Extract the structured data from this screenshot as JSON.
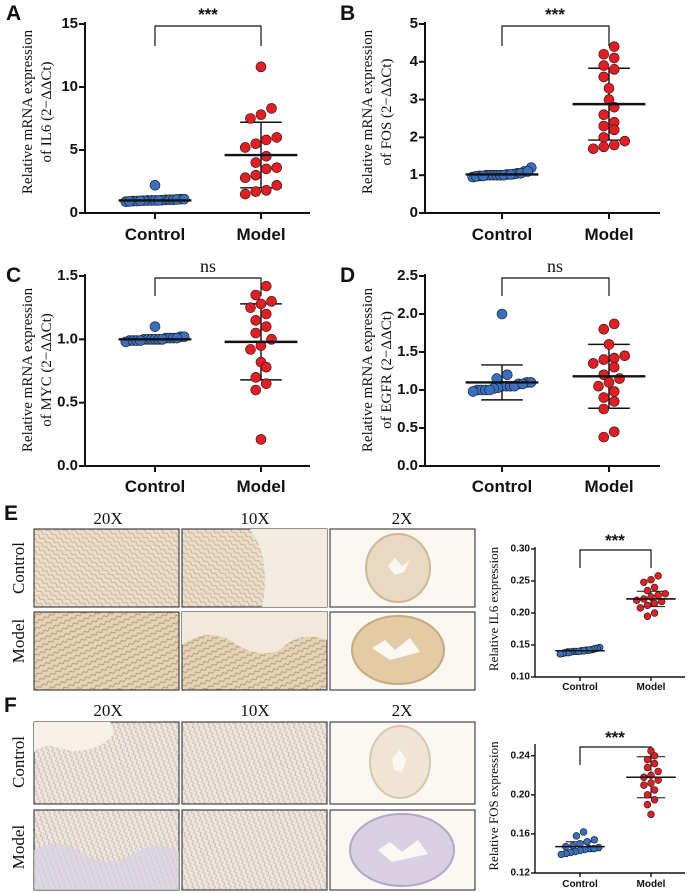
{
  "colors": {
    "control": "#3a6fbf",
    "model": "#e51d23",
    "axis": "#111111",
    "tissue_light": "#efe3cf",
    "tissue_dark": "#d9c4a6",
    "stain_blue": "#b9b3cf",
    "stain_brown": "#c9ad86"
  },
  "chart_data": [
    {
      "id": "A",
      "panel_label": "A",
      "type": "scatter",
      "ylabel_line1": "Relative mRNA expression",
      "ylabel_line2": "of IL6 (2−ΔΔCt)",
      "ylim": [
        0,
        15
      ],
      "yticks": [
        "0",
        "5",
        "10",
        "15"
      ],
      "ytick_values": [
        0,
        5,
        10,
        15
      ],
      "categories": [
        "Control",
        "Model"
      ],
      "significance": "***",
      "series": [
        {
          "name": "Control",
          "mean": 1.0,
          "sd": 0.25,
          "values": [
            0.95,
            1.0,
            1.05,
            0.9,
            1.1,
            1.0,
            0.98,
            1.02,
            1.05,
            0.95,
            1.0,
            1.05,
            0.92,
            1.08,
            1.0,
            0.97,
            1.1,
            2.2
          ]
        },
        {
          "name": "Model",
          "mean": 4.6,
          "sd": 2.6,
          "values": [
            11.6,
            8.3,
            7.8,
            7.5,
            6.0,
            5.8,
            5.5,
            5.2,
            4.5,
            4.0,
            3.6,
            3.5,
            3.0,
            2.8,
            2.2,
            1.8,
            1.7,
            1.5
          ]
        }
      ]
    },
    {
      "id": "B",
      "panel_label": "B",
      "type": "scatter",
      "ylabel_line1": "Relative mRNA expression",
      "ylabel_line2": "of FOS (2−ΔΔCt)",
      "ylim": [
        0,
        5
      ],
      "yticks": [
        "0",
        "1",
        "2",
        "3",
        "4",
        "5"
      ],
      "ytick_values": [
        0,
        1,
        2,
        3,
        4,
        5
      ],
      "categories": [
        "Control",
        "Model"
      ],
      "significance": "***",
      "series": [
        {
          "name": "Control",
          "mean": 1.02,
          "sd": 0.06,
          "values": [
            1.0,
            1.02,
            0.98,
            1.05,
            1.0,
            1.1,
            0.95,
            1.0,
            1.03,
            0.97,
            1.0,
            1.05,
            1.0,
            0.98,
            1.2,
            1.0,
            1.02,
            1.1
          ]
        },
        {
          "name": "Model",
          "mean": 2.88,
          "sd": 0.95,
          "values": [
            4.4,
            4.2,
            4.1,
            3.9,
            3.8,
            3.6,
            3.3,
            3.0,
            2.8,
            2.6,
            2.4,
            2.3,
            2.2,
            2.0,
            1.9,
            1.8,
            1.75,
            1.7
          ]
        }
      ]
    },
    {
      "id": "C",
      "panel_label": "C",
      "type": "scatter",
      "ylabel_line1": "Relative mRNA expression",
      "ylabel_line2": "of MYC (2−ΔΔCt)",
      "ylim": [
        0,
        1.5
      ],
      "yticks": [
        "0.0",
        "0.5",
        "1.0",
        "1.5"
      ],
      "ytick_values": [
        0,
        0.5,
        1.0,
        1.5
      ],
      "categories": [
        "Control",
        "Model"
      ],
      "significance": "ns",
      "series": [
        {
          "name": "Control",
          "mean": 1.0,
          "sd": 0.02,
          "values": [
            1.0,
            1.01,
            0.99,
            1.02,
            1.0,
            0.98,
            1.01,
            1.0,
            0.99,
            1.02,
            1.0,
            1.01,
            0.99,
            1.0,
            1.1,
            1.0,
            1.01,
            0.99
          ]
        },
        {
          "name": "Model",
          "mean": 0.98,
          "sd": 0.3,
          "values": [
            1.42,
            1.35,
            1.3,
            1.28,
            1.25,
            1.2,
            1.15,
            1.1,
            1.05,
            1.0,
            0.95,
            0.92,
            0.82,
            0.78,
            0.7,
            0.65,
            0.6,
            0.21
          ]
        }
      ]
    },
    {
      "id": "D",
      "panel_label": "D",
      "type": "scatter",
      "ylabel_line1": "Relative mRNA expression",
      "ylabel_line2": "of EGFR (2−ΔΔCt)",
      "ylim": [
        0,
        2.5
      ],
      "yticks": [
        "0.0",
        "0.5",
        "1.0",
        "1.5",
        "2.0",
        "2.5"
      ],
      "ytick_values": [
        0,
        0.5,
        1.0,
        1.5,
        2.0,
        2.5
      ],
      "categories": [
        "Control",
        "Model"
      ],
      "significance": "ns",
      "series": [
        {
          "name": "Control",
          "mean": 1.1,
          "sd": 0.23,
          "values": [
            2.0,
            1.2,
            1.15,
            1.1,
            1.08,
            1.05,
            1.05,
            1.03,
            1.0,
            1.0,
            1.02,
            1.05,
            1.1,
            1.0,
            0.98,
            1.0,
            1.05,
            1.08
          ]
        },
        {
          "name": "Model",
          "mean": 1.18,
          "sd": 0.42,
          "values": [
            1.87,
            1.8,
            1.6,
            1.45,
            1.42,
            1.4,
            1.35,
            1.3,
            1.2,
            1.15,
            1.1,
            1.05,
            0.98,
            0.9,
            0.85,
            0.75,
            0.45,
            0.38
          ]
        }
      ]
    },
    {
      "id": "E",
      "panel_label": "E",
      "type": "scatter",
      "ylabel_line1": "Relative IL6 expression",
      "ylabel_line2": "",
      "ylim": [
        0.1,
        0.3
      ],
      "yticks": [
        "0.10",
        "0.15",
        "0.20",
        "0.25",
        "0.30"
      ],
      "ytick_values": [
        0.1,
        0.15,
        0.2,
        0.25,
        0.3
      ],
      "categories": [
        "Control",
        "Model"
      ],
      "significance": "***",
      "series": [
        {
          "name": "Control",
          "mean": 0.141,
          "sd": 0.003,
          "values": [
            0.146,
            0.145,
            0.144,
            0.143,
            0.142,
            0.142,
            0.141,
            0.141,
            0.14,
            0.14,
            0.14,
            0.139,
            0.138,
            0.138,
            0.137,
            0.136
          ]
        },
        {
          "name": "Model",
          "mean": 0.222,
          "sd": 0.012,
          "values": [
            0.258,
            0.252,
            0.248,
            0.24,
            0.235,
            0.23,
            0.228,
            0.225,
            0.222,
            0.22,
            0.218,
            0.215,
            0.212,
            0.208,
            0.2,
            0.195
          ]
        }
      ]
    },
    {
      "id": "F",
      "panel_label": "F",
      "type": "scatter",
      "ylabel_line1": "Relative FOS expression",
      "ylabel_line2": "",
      "ylim": [
        0.12,
        0.25
      ],
      "yticks": [
        "0.12",
        "0.16",
        "0.20",
        "0.24"
      ],
      "ytick_values": [
        0.12,
        0.16,
        0.2,
        0.24
      ],
      "categories": [
        "Control",
        "Model"
      ],
      "significance": "***",
      "series": [
        {
          "name": "Control",
          "mean": 0.147,
          "sd": 0.005,
          "values": [
            0.162,
            0.158,
            0.154,
            0.152,
            0.15,
            0.148,
            0.147,
            0.146,
            0.145,
            0.145,
            0.144,
            0.143,
            0.142,
            0.141,
            0.14,
            0.139
          ]
        },
        {
          "name": "Model",
          "mean": 0.218,
          "sd": 0.021,
          "values": [
            0.245,
            0.24,
            0.236,
            0.232,
            0.228,
            0.224,
            0.22,
            0.218,
            0.215,
            0.212,
            0.21,
            0.205,
            0.2,
            0.195,
            0.19,
            0.18
          ]
        }
      ]
    }
  ],
  "micrographs": {
    "E": {
      "panel_label": "E",
      "magnifications": [
        "20X",
        "10X",
        "2X"
      ],
      "rows": [
        "Control",
        "Model"
      ]
    },
    "F": {
      "panel_label": "F",
      "magnifications": [
        "20X",
        "10X",
        "2X"
      ],
      "rows": [
        "Control",
        "Model"
      ]
    }
  }
}
